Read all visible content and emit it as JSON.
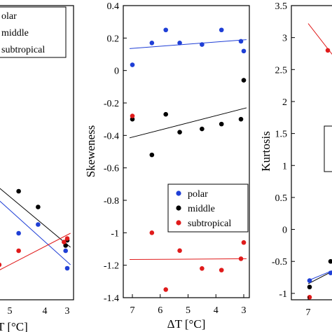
{
  "chart_data": [
    {
      "type": "scatter",
      "xlabel": "ΔT [°C]",
      "xlabel_visible": "T [°C]",
      "xlim": [
        7.2,
        2.8
      ],
      "x_reversed": true,
      "xticks": [
        "5",
        "4",
        "3"
      ],
      "legend": [
        "polar",
        "middle",
        "subtropical"
      ],
      "legend_visible": [
        "olar",
        "middle",
        "subtropical"
      ],
      "series": [
        {
          "name": "polar",
          "color": "#1f3fd6",
          "points": [
            [
              4.5,
              0.38
            ],
            [
              3.9,
              0.43
            ],
            [
              3.05,
              0.28
            ],
            [
              3.0,
              0.18
            ]
          ],
          "trend": [
            [
              5.3,
              0.6
            ],
            [
              2.9,
              0.2
            ]
          ]
        },
        {
          "name": "middle",
          "color": "#000000",
          "points": [
            [
              5.2,
              0.67
            ],
            [
              4.5,
              0.62
            ],
            [
              3.9,
              0.53
            ],
            [
              3.05,
              0.31
            ],
            [
              3.0,
              0.34
            ]
          ],
          "trend": [
            [
              5.3,
              0.67
            ],
            [
              2.9,
              0.3
            ]
          ]
        },
        {
          "name": "subtropical",
          "color": "#e01b1b",
          "points": [
            [
              5.1,
              0.2
            ],
            [
              4.5,
              0.28
            ],
            [
              3.1,
              0.33
            ],
            [
              3.0,
              0.35
            ]
          ],
          "trend": [
            [
              5.3,
              0.15
            ],
            [
              2.9,
              0.38
            ]
          ]
        }
      ]
    },
    {
      "type": "scatter",
      "xlabel": "ΔT [°C]",
      "ylabel": "Skeweness",
      "xlim": [
        7.3,
        2.8
      ],
      "x_reversed": true,
      "ylim": [
        -1.4,
        0.4
      ],
      "xticks": [
        "7",
        "6",
        "5",
        "4",
        "3"
      ],
      "yticks": [
        "0.4",
        "0.2",
        "0",
        "-0.2",
        "-0.4",
        "-0.6",
        "-0.8",
        "-1",
        "-1.2",
        "-1.4"
      ],
      "legend": [
        "polar",
        "middle",
        "subtropical"
      ],
      "legend_placement": "lower-right",
      "series": [
        {
          "name": "polar",
          "color": "#1f3fd6",
          "points": [
            [
              7.0,
              0.035
            ],
            [
              6.3,
              0.17
            ],
            [
              5.8,
              0.25
            ],
            [
              5.3,
              0.17
            ],
            [
              4.5,
              0.16
            ],
            [
              3.8,
              0.25
            ],
            [
              3.1,
              0.18
            ],
            [
              3.0,
              0.12
            ]
          ],
          "trend": [
            [
              7.1,
              0.135
            ],
            [
              2.9,
              0.19
            ]
          ]
        },
        {
          "name": "middle",
          "color": "#000000",
          "points": [
            [
              7.0,
              -0.3
            ],
            [
              6.3,
              -0.52
            ],
            [
              5.8,
              -0.27
            ],
            [
              5.3,
              -0.38
            ],
            [
              4.5,
              -0.36
            ],
            [
              3.8,
              -0.33
            ],
            [
              3.1,
              -0.3
            ],
            [
              3.0,
              -0.06
            ]
          ],
          "trend": [
            [
              7.1,
              -0.415
            ],
            [
              2.9,
              -0.23
            ]
          ]
        },
        {
          "name": "subtropical",
          "color": "#e01b1b",
          "points": [
            [
              7.0,
              -0.28
            ],
            [
              6.3,
              -1.0
            ],
            [
              5.8,
              -1.35
            ],
            [
              5.3,
              -1.11
            ],
            [
              4.5,
              -1.22
            ],
            [
              3.8,
              -1.23
            ],
            [
              3.1,
              -1.16
            ],
            [
              3.0,
              -1.06
            ]
          ],
          "trend": [
            [
              7.1,
              -1.165
            ],
            [
              2.9,
              -1.16
            ]
          ]
        }
      ]
    },
    {
      "type": "scatter",
      "xlabel": "ΔT [°C]",
      "ylabel": "Kurtosis",
      "xlim": [
        7.2,
        2.8
      ],
      "x_reversed": true,
      "ylim": [
        -1.1,
        3.5
      ],
      "xticks": [
        "7"
      ],
      "yticks": [
        "3.5",
        "3",
        "2.5",
        "2",
        "1.5",
        "1",
        "0.5",
        "0",
        "-0.5",
        "-1"
      ],
      "series": [
        {
          "name": "polar",
          "color": "#1f3fd6",
          "points": [
            [
              6.95,
              -0.8
            ],
            [
              6.2,
              -0.68
            ]
          ],
          "trend": [
            [
              7.0,
              -0.8
            ],
            [
              5.9,
              -0.6
            ]
          ]
        },
        {
          "name": "middle",
          "color": "#000000",
          "points": [
            [
              6.95,
              -0.9
            ],
            [
              6.2,
              -0.5
            ]
          ],
          "trend": [
            [
              7.0,
              -0.85
            ],
            [
              5.9,
              -0.6
            ]
          ]
        },
        {
          "name": "subtropical",
          "color": "#e01b1b",
          "points": [
            [
              6.95,
              -1.06
            ],
            [
              6.3,
              2.8
            ]
          ],
          "trend": [
            [
              7.0,
              3.22
            ],
            [
              5.9,
              2.6
            ]
          ]
        }
      ]
    }
  ]
}
